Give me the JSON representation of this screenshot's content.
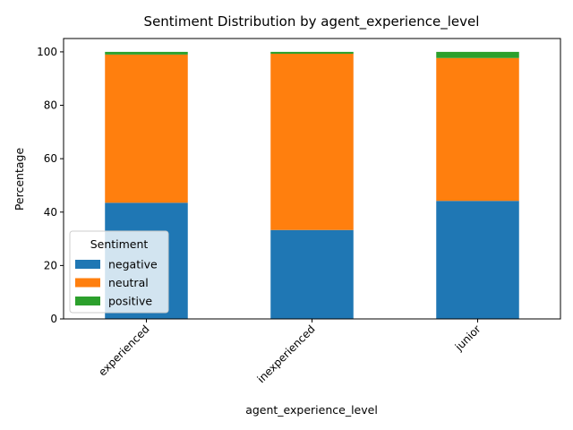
{
  "chart_data": {
    "type": "bar",
    "stacked": true,
    "title": "Sentiment Distribution by agent_experience_level",
    "xlabel": "agent_experience_level",
    "ylabel": "Percentage",
    "categories": [
      "experienced",
      "inexperienced",
      "junior"
    ],
    "series": [
      {
        "name": "negative",
        "color": "#1f77b4",
        "values": [
          43.5,
          33.3,
          44.2
        ]
      },
      {
        "name": "neutral",
        "color": "#ff7f0e",
        "values": [
          55.5,
          66.0,
          53.5
        ]
      },
      {
        "name": "positive",
        "color": "#2ca02c",
        "values": [
          1.0,
          0.7,
          2.3
        ]
      }
    ],
    "ylim": [
      0,
      105
    ],
    "yticks": [
      0,
      20,
      40,
      60,
      80,
      100
    ],
    "grid": false,
    "legend": {
      "title": "Sentiment",
      "placement": "lower-left"
    }
  }
}
